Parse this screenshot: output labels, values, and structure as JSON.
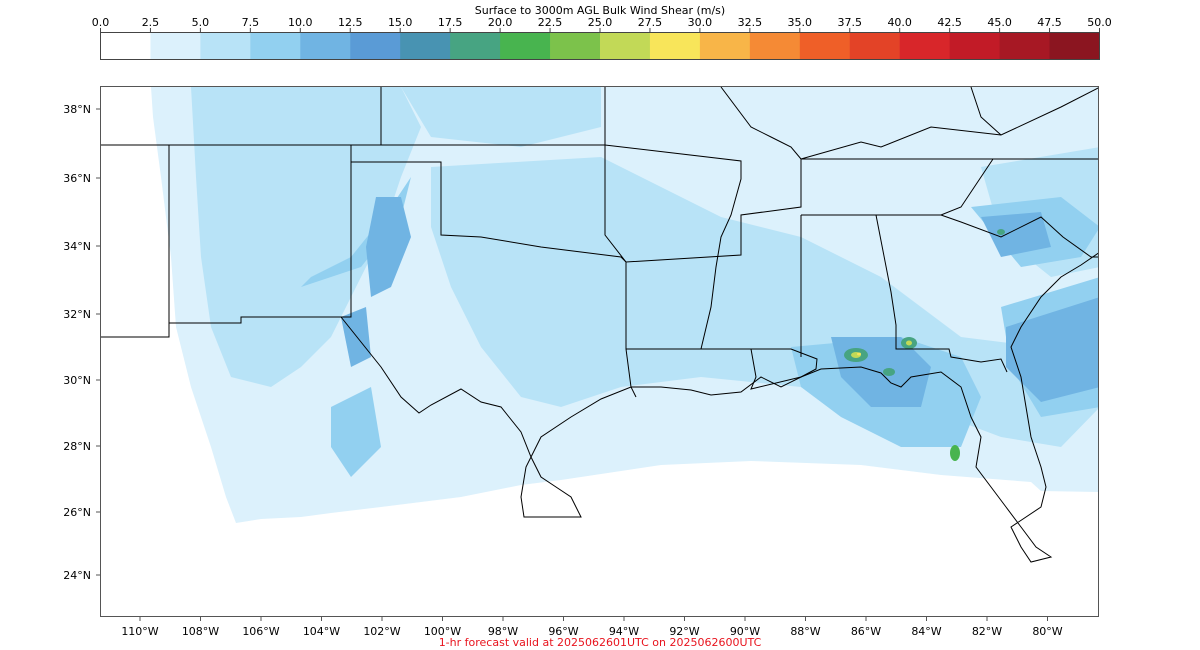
{
  "colorbar": {
    "title": "Surface to 3000m AGL Bulk Wind Shear (m/s)",
    "ticks": [
      "0.0",
      "2.5",
      "5.0",
      "7.5",
      "10.0",
      "12.5",
      "15.0",
      "17.5",
      "20.0",
      "22.5",
      "25.0",
      "27.5",
      "30.0",
      "32.5",
      "35.0",
      "37.5",
      "40.0",
      "42.5",
      "45.0",
      "47.5",
      "50.0"
    ],
    "colors": [
      "#ffffff",
      "#dcf1fc",
      "#b8e3f7",
      "#92d0f0",
      "#70b4e3",
      "#5a9bd6",
      "#4893b2",
      "#47a482",
      "#48b44f",
      "#7cc24b",
      "#c2d957",
      "#f8e55a",
      "#f8b548",
      "#f58a35",
      "#ef5f28",
      "#e34327",
      "#d8262a",
      "#c21b27",
      "#a71824",
      "#8b1520"
    ]
  },
  "map": {
    "lat_labels": [
      "38°N",
      "36°N",
      "34°N",
      "32°N",
      "30°N",
      "28°N",
      "26°N",
      "24°N"
    ],
    "lon_labels": [
      "110°W",
      "108°W",
      "106°W",
      "104°W",
      "102°W",
      "100°W",
      "98°W",
      "96°W",
      "94°W",
      "92°W",
      "90°W",
      "88°W",
      "86°W",
      "84°W",
      "82°W",
      "80°W"
    ]
  },
  "footer": {
    "text": "1-hr forecast valid at 2025062601UTC on 2025062600UTC"
  }
}
